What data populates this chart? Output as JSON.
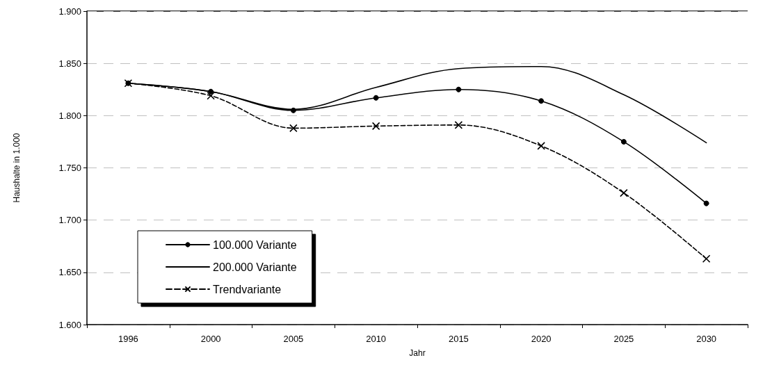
{
  "chart_data": {
    "type": "line",
    "xlabel": "Jahr",
    "ylabel": "Haushalte in 1.000",
    "categories": [
      "1996",
      "2000",
      "2005",
      "2010",
      "2015",
      "2020",
      "2025",
      "2030"
    ],
    "series": [
      {
        "name": "100.000 Variante",
        "color": "#000000",
        "marker": "circle",
        "line_style": "solid",
        "values": [
          1831,
          1823,
          1805,
          1817,
          1825,
          1814,
          1775,
          1716
        ]
      },
      {
        "name": "200.000 Variante",
        "color": "#000000",
        "marker": "none",
        "line_style": "solid",
        "values": [
          1831,
          1823,
          1806,
          1827,
          1845,
          1847,
          1820,
          1774
        ]
      },
      {
        "name": "Trendvariante",
        "color": "#000000",
        "marker": "cross",
        "line_style": "dashed",
        "values": [
          1831,
          1819,
          1788,
          1790,
          1791,
          1771,
          1726,
          1663
        ]
      }
    ],
    "ylim": [
      1600,
      1900
    ],
    "yticks": [
      {
        "value": 1600,
        "label": "1.600"
      },
      {
        "value": 1650,
        "label": "1.650"
      },
      {
        "value": 1700,
        "label": "1.700"
      },
      {
        "value": 1750,
        "label": "1.750"
      },
      {
        "value": 1800,
        "label": "1.800"
      },
      {
        "value": 1850,
        "label": "1.850"
      },
      {
        "value": 1900,
        "label": "1.900"
      }
    ],
    "grid": "y",
    "legend": "bottom left"
  }
}
